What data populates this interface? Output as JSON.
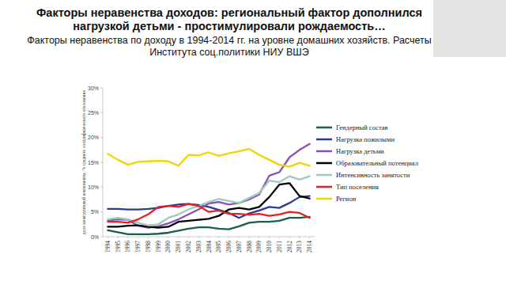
{
  "chart_data": {
    "type": "line",
    "title": "Факторы неравенства доходов: региональный фактор дополнился нагрузкой детьми - простимулировали рождаемость…",
    "subtitle": "Факторы неравенства по доходу в 1994-2014 гг. на уровне домашних хозяйств. Расчеты Института соц.политики НИУ ВШЭ",
    "y_label": "доля межгрупповой компоненты, % среднего логарифмического отклонения",
    "categories": [
      "1994",
      "1995",
      "1996",
      "1997",
      "1998",
      "1999",
      "2000",
      "2001",
      "2002",
      "2003",
      "2004",
      "2005",
      "2006",
      "2007",
      "2008",
      "2009",
      "2010",
      "2011",
      "2012",
      "2013",
      "2014"
    ],
    "series": [
      {
        "name": "Гендерный состав",
        "color": "#1b5e4b",
        "values": [
          1.3,
          0.9,
          0.5,
          0.5,
          0.5,
          0.6,
          0.8,
          1.2,
          1.6,
          1.9,
          1.9,
          1.6,
          1.5,
          2.1,
          2.8,
          3.0,
          3.0,
          3.2,
          3.8,
          3.8,
          4.0
        ]
      },
      {
        "name": "Нагрузка пожилыми",
        "color": "#2d3a9c",
        "values": [
          5.6,
          5.6,
          5.5,
          5.5,
          5.6,
          5.8,
          6.2,
          6.5,
          6.6,
          6.4,
          6.0,
          5.4,
          4.8,
          3.8,
          4.7,
          5.3,
          6.0,
          5.8,
          6.8,
          8.0,
          8.2
        ]
      },
      {
        "name": "Нагрузка детьми",
        "color": "#8b4fb6",
        "values": [
          3.3,
          3.5,
          3.4,
          2.2,
          1.8,
          2.1,
          2.7,
          3.5,
          4.5,
          5.5,
          6.7,
          7.0,
          6.5,
          6.8,
          7.5,
          8.5,
          12.3,
          13.0,
          16.0,
          17.5,
          18.7
        ]
      },
      {
        "name": "Образовательный потенциал",
        "color": "#000000",
        "values": [
          2.0,
          2.0,
          2.2,
          2.3,
          2.0,
          1.8,
          2.0,
          3.0,
          3.2,
          3.4,
          3.6,
          4.2,
          5.5,
          5.8,
          5.5,
          6.0,
          8.0,
          10.5,
          10.8,
          8.2,
          7.7
        ]
      },
      {
        "name": "Интенсивность занятости",
        "color": "#9fcab9",
        "values": [
          3.5,
          3.8,
          3.5,
          2.8,
          2.3,
          2.5,
          3.8,
          4.5,
          5.5,
          6.2,
          7.0,
          7.6,
          7.2,
          6.8,
          7.8,
          8.8,
          11.3,
          11.0,
          12.2,
          11.5,
          12.2
        ]
      },
      {
        "name": "Тип поселения",
        "color": "#e02424",
        "values": [
          3.0,
          3.0,
          2.8,
          3.5,
          4.5,
          6.0,
          6.2,
          6.0,
          6.6,
          6.2,
          5.0,
          5.3,
          4.6,
          4.6,
          4.4,
          4.6,
          4.2,
          4.5,
          5.0,
          4.8,
          3.8
        ]
      },
      {
        "name": "Регион",
        "color": "#f2d400",
        "values": [
          16.7,
          15.5,
          14.5,
          15.1,
          15.2,
          15.3,
          15.2,
          14.3,
          16.5,
          16.4,
          17.0,
          16.3,
          16.8,
          17.2,
          17.7,
          16.5,
          15.5,
          14.5,
          14.1,
          14.9,
          14.3
        ]
      }
    ],
    "ylim": [
      0,
      30
    ],
    "yticks": [
      {
        "value": 0,
        "label": "0%"
      },
      {
        "value": 5,
        "label": "5%"
      },
      {
        "value": 10,
        "label": "10%"
      },
      {
        "value": 15,
        "label": "15%"
      },
      {
        "value": 20,
        "label": "20%"
      },
      {
        "value": 25,
        "label": "25%"
      },
      {
        "value": 30,
        "label": "30%"
      }
    ],
    "grid": false,
    "legend": "right"
  }
}
